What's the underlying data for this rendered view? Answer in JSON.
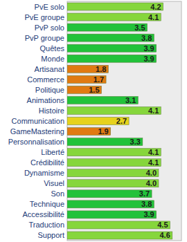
{
  "chart_data": {
    "type": "bar",
    "orientation": "horizontal",
    "categories": [
      "PvE solo",
      "PvE groupe",
      "PvP solo",
      "PvP groupe",
      "Quêtes",
      "Monde",
      "Artisanat",
      "Commerce",
      "Politique",
      "Animations",
      "Histoire",
      "Communication",
      "GameMastering",
      "Personnalisation",
      "Liberté",
      "Crédibilité",
      "Dynamisme",
      "Visuel",
      "Son",
      "Technique",
      "Accessibilité",
      "Traduction",
      "Support"
    ],
    "values": [
      4.2,
      4.1,
      3.5,
      3.8,
      3.9,
      3.9,
      1.8,
      1.7,
      1.5,
      3.1,
      4.1,
      2.7,
      1.9,
      3.3,
      4.1,
      4.1,
      4.0,
      4.0,
      3.7,
      3.8,
      3.9,
      4.5,
      4.6
    ],
    "value_labels": [
      "4.2",
      "4.1",
      "3.5",
      "3.8",
      "3.9",
      "3.9",
      "1.8",
      "1.7",
      "1.5",
      "3.1",
      "4.1",
      "2.7",
      "1.9",
      "3.3",
      "4.1",
      "4.1",
      "4.0",
      "4.0",
      "3.7",
      "3.8",
      "3.9",
      "4.5",
      "4.6"
    ],
    "colors": [
      "#86d63c",
      "#86d63c",
      "#22c23a",
      "#22c23a",
      "#22c23a",
      "#22c23a",
      "#e07a12",
      "#e07a12",
      "#e07a12",
      "#22c23a",
      "#86d63c",
      "#e6d21c",
      "#e07a12",
      "#22c23a",
      "#86d63c",
      "#86d63c",
      "#86d63c",
      "#86d63c",
      "#22c23a",
      "#22c23a",
      "#22c23a",
      "#86d63c",
      "#86d63c"
    ],
    "xlim": [
      0,
      5
    ],
    "data_labels": true,
    "tick_labels": false
  }
}
